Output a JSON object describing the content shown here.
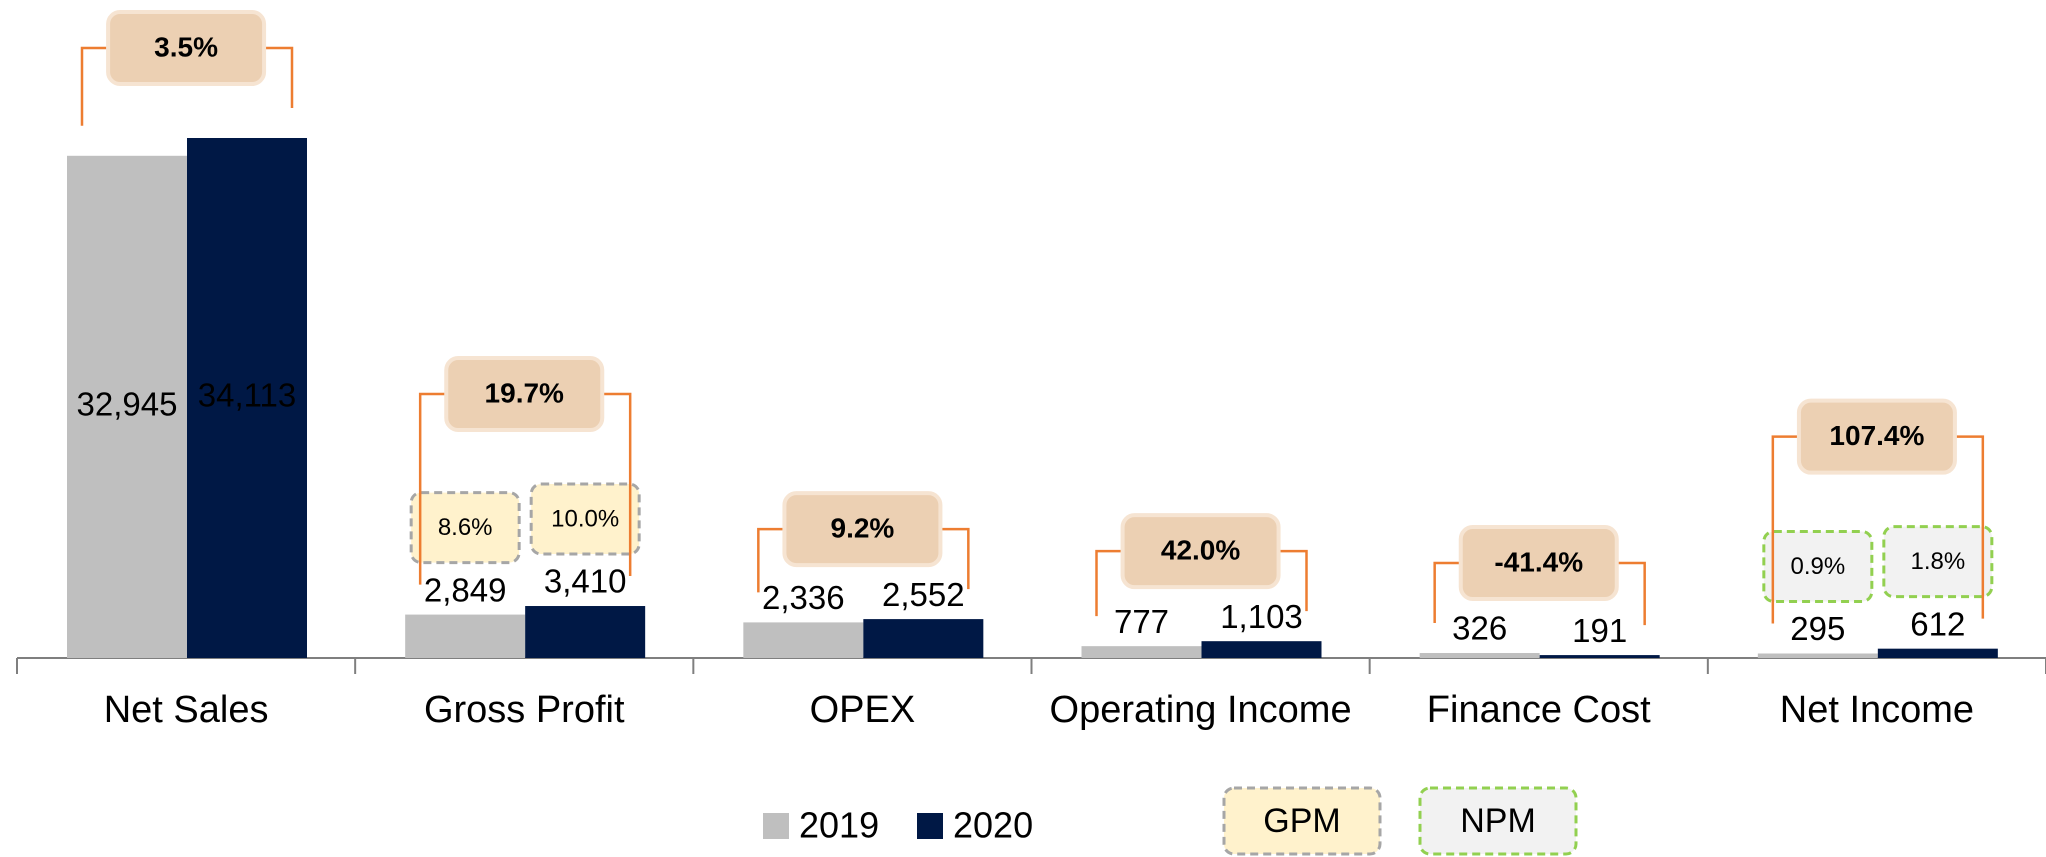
{
  "chart_data": {
    "type": "bar",
    "categories": [
      "Net Sales",
      "Gross Profit",
      "OPEX",
      "Operating Income",
      "Finance Cost",
      "Net Income"
    ],
    "series": [
      {
        "name": "2019",
        "color": "#bfbfbf",
        "values": [
          32945,
          2849,
          2336,
          777,
          326,
          295
        ],
        "value_labels": [
          "32,945",
          "2,849",
          "2,336",
          "777",
          "326",
          "295"
        ]
      },
      {
        "name": "2020",
        "color": "#001845",
        "values": [
          34113,
          3410,
          2552,
          1103,
          191,
          612
        ],
        "value_labels": [
          "34,113",
          "3,410",
          "2,552",
          "1,103",
          "191",
          "612"
        ]
      }
    ],
    "growth": {
      "color": "#ed7d31",
      "fill": "#ecd0b3",
      "values": [
        3.5,
        19.7,
        9.2,
        42.0,
        -41.4,
        107.4
      ],
      "value_labels": [
        "3.5%",
        "19.7%",
        "9.2%",
        "42.0%",
        "-41.4%",
        "107.4%"
      ]
    },
    "margins": [
      {
        "name": "GPM",
        "fill": "#fff2cc",
        "stroke": "#a6a6a6",
        "values": [
          [
            null,
            null
          ],
          [
            8.6,
            10.0
          ],
          [
            null,
            null
          ],
          [
            null,
            null
          ],
          [
            null,
            null
          ],
          [
            null,
            null
          ]
        ],
        "value_labels": [
          [
            null,
            null
          ],
          [
            "8.6%",
            "10.0%"
          ],
          [
            null,
            null
          ],
          [
            null,
            null
          ],
          [
            null,
            null
          ],
          [
            null,
            null
          ]
        ]
      },
      {
        "name": "NPM",
        "fill": "#f2f2f2",
        "stroke": "#92d050",
        "values": [
          [
            null,
            null
          ],
          [
            null,
            null
          ],
          [
            null,
            null
          ],
          [
            null,
            null
          ],
          [
            null,
            null
          ],
          [
            0.9,
            1.8
          ]
        ],
        "value_labels": [
          [
            null,
            null
          ],
          [
            null,
            null
          ],
          [
            null,
            null
          ],
          [
            null,
            null
          ],
          [
            null,
            null
          ],
          [
            "0.9%",
            "1.8%"
          ]
        ]
      }
    ],
    "legend": "bottom"
  }
}
